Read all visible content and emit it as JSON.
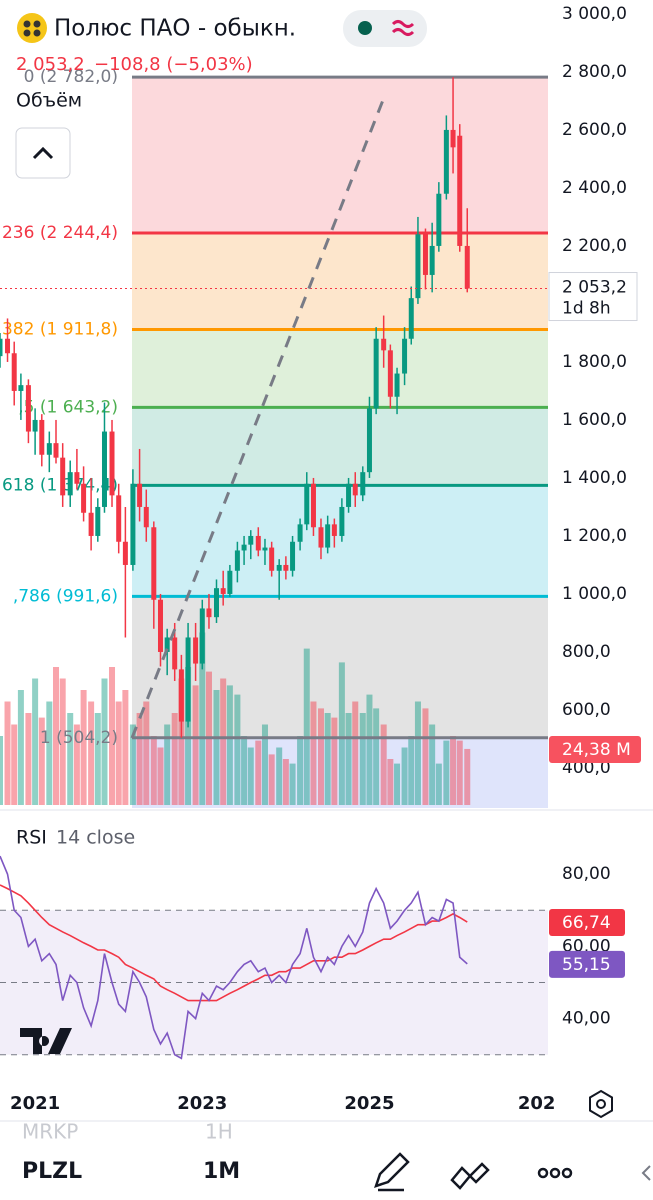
{
  "header": {
    "title": "Полюс ПАО - обыкн.",
    "quote": "2 053,2",
    "change": "−108,8 (−5,03%)",
    "volume_label": "Объём"
  },
  "chart_data": [
    {
      "type": "candlestick",
      "xlim": [
        2020.58,
        2027.1
      ],
      "ylim": [
        262,
        3048
      ],
      "grid": false,
      "xticks": [
        2021,
        2023,
        2025,
        {
          "value": 2027,
          "label": "202"
        }
      ],
      "yticks": [
        {
          "value": 3000,
          "label": "3 000,0"
        },
        {
          "value": 2800,
          "label": "2 800,0"
        },
        {
          "value": 2600,
          "label": "2 600,0"
        },
        {
          "value": 2400,
          "label": "2 400,0"
        },
        {
          "value": 2200,
          "label": "2 200,0"
        },
        {
          "value": 2000,
          "label": "2 000,0"
        },
        {
          "value": 1800,
          "label": "1 800,0"
        },
        {
          "value": 1600,
          "label": "1 600,0"
        },
        {
          "value": 1400,
          "label": "1 400,0"
        },
        {
          "value": 1200,
          "label": "1 200,0"
        },
        {
          "value": 1000,
          "label": "1 000,0"
        },
        {
          "value": 800,
          "label": "800,0"
        },
        {
          "value": 600,
          "label": "600,0"
        },
        {
          "value": 400,
          "label": "400,0"
        }
      ],
      "up_color": "#089981",
      "down_color": "#f23645",
      "x": [
        2020.58,
        2020.67,
        2020.75,
        2020.83,
        2020.92,
        2021.0,
        2021.08,
        2021.17,
        2021.25,
        2021.33,
        2021.42,
        2021.5,
        2021.58,
        2021.67,
        2021.75,
        2021.83,
        2021.92,
        2022.0,
        2022.08,
        2022.17,
        2022.25,
        2022.33,
        2022.42,
        2022.5,
        2022.58,
        2022.67,
        2022.75,
        2022.83,
        2022.92,
        2023.0,
        2023.08,
        2023.17,
        2023.25,
        2023.33,
        2023.42,
        2023.5,
        2023.58,
        2023.67,
        2023.75,
        2023.83,
        2023.92,
        2024.0,
        2024.08,
        2024.17,
        2024.25,
        2024.33,
        2024.42,
        2024.5,
        2024.58,
        2024.67,
        2024.75,
        2024.83,
        2024.92,
        2025.0,
        2025.08,
        2025.17,
        2025.25,
        2025.33,
        2025.42,
        2025.5,
        2025.58,
        2025.67,
        2025.75,
        2025.83,
        2025.92,
        2026.0,
        2026.08,
        2026.17
      ],
      "open": [
        1820,
        1880,
        1830,
        1700,
        1720,
        1560,
        1600,
        1480,
        1520,
        1470,
        1340,
        1420,
        1380,
        1280,
        1200,
        1300,
        1560,
        1340,
        1180,
        1100,
        1380,
        1300,
        1230,
        980,
        800,
        850,
        740,
        560,
        850,
        760,
        950,
        920,
        1020,
        1000,
        1080,
        1150,
        1170,
        1200,
        1150,
        1160,
        1080,
        1100,
        1080,
        1180,
        1240,
        1380,
        1230,
        1160,
        1240,
        1200,
        1300,
        1380,
        1340,
        1420,
        1640,
        1880,
        1840,
        1680,
        1760,
        1880,
        2020,
        2240,
        2100,
        2200,
        2380,
        2600,
        2580,
        2200
      ],
      "high": [
        1900,
        1950,
        1870,
        1760,
        1740,
        1640,
        1620,
        1560,
        1600,
        1520,
        1460,
        1500,
        1440,
        1400,
        1330,
        1660,
        1600,
        1380,
        1300,
        1430,
        1500,
        1360,
        1250,
        1000,
        880,
        900,
        790,
        900,
        900,
        980,
        1000,
        1050,
        1080,
        1100,
        1180,
        1200,
        1220,
        1230,
        1190,
        1180,
        1120,
        1130,
        1200,
        1260,
        1420,
        1400,
        1260,
        1270,
        1260,
        1330,
        1400,
        1420,
        1440,
        1680,
        1920,
        1960,
        1860,
        1780,
        1920,
        2060,
        2300,
        2260,
        2280,
        2420,
        2650,
        2782,
        2620,
        2330
      ],
      "low": [
        1780,
        1800,
        1650,
        1600,
        1520,
        1480,
        1440,
        1420,
        1450,
        1300,
        1300,
        1360,
        1250,
        1150,
        1180,
        1280,
        1300,
        1140,
        850,
        1080,
        1250,
        1180,
        880,
        750,
        720,
        700,
        504.2,
        540,
        700,
        740,
        880,
        900,
        960,
        990,
        1040,
        1100,
        1120,
        1130,
        1100,
        1060,
        980,
        1050,
        1060,
        1150,
        1220,
        1200,
        1120,
        1140,
        1160,
        1180,
        1280,
        1300,
        1320,
        1400,
        1620,
        1780,
        1640,
        1620,
        1720,
        1860,
        2000,
        2050,
        2040,
        2180,
        2360,
        2450,
        2180,
        2040
      ],
      "close": [
        1880,
        1830,
        1700,
        1720,
        1560,
        1600,
        1480,
        1520,
        1470,
        1340,
        1420,
        1380,
        1280,
        1200,
        1300,
        1560,
        1340,
        1180,
        1100,
        1380,
        1300,
        1230,
        980,
        800,
        850,
        740,
        560,
        850,
        760,
        950,
        920,
        1020,
        1000,
        1080,
        1150,
        1170,
        1200,
        1150,
        1160,
        1080,
        1100,
        1080,
        1180,
        1240,
        1380,
        1230,
        1160,
        1240,
        1200,
        1300,
        1380,
        1340,
        1420,
        1640,
        1880,
        1840,
        1680,
        1760,
        1880,
        2020,
        2240,
        2100,
        2200,
        2380,
        2600,
        2540,
        2200,
        2053.2
      ],
      "last_price": {
        "value": 2053.2,
        "label": "2 053,2",
        "countdown": "1d 8h"
      },
      "fib_levels": [
        {
          "value": 2782,
          "label": "0 (2 782,0)",
          "color": "#787b86",
          "fill": "#fcd9dc"
        },
        {
          "value": 2244.4,
          "label": "236 (2 244,4)",
          "color": "#f23645",
          "fill": "#fde6cc"
        },
        {
          "value": 1911.8,
          "label": "382 (1 911,8)",
          "color": "#ff9800",
          "fill": "#dff0da"
        },
        {
          "value": 1643.2,
          "label": ",5 (1 643,2)",
          "color": "#4caf50",
          "fill": "#d0ebe4"
        },
        {
          "value": 1374.4,
          "label": "618 (1 374,4)",
          "color": "#089981",
          "fill": "#cdeff5"
        },
        {
          "value": 991.6,
          "label": ",786 (991,6)",
          "color": "#00bcd4",
          "fill": "#e3e3e3"
        },
        {
          "value": 504.2,
          "label": "1 (504,2)",
          "color": "#787b86",
          "fill": "#dfe4fb"
        }
      ]
    },
    {
      "type": "volume",
      "ylim": [
        0,
        100
      ],
      "values": [
        30,
        45,
        35,
        50,
        40,
        55,
        38,
        45,
        60,
        55,
        40,
        35,
        50,
        45,
        40,
        55,
        60,
        45,
        50,
        35,
        40,
        45,
        30,
        25,
        35,
        40,
        55,
        60,
        52,
        75,
        58,
        50,
        55,
        52,
        48,
        30,
        25,
        28,
        35,
        22,
        25,
        20,
        18,
        30,
        68,
        45,
        42,
        40,
        38,
        62,
        40,
        45,
        40,
        48,
        42,
        35,
        20,
        18,
        25,
        30,
        45,
        42,
        35,
        18,
        28,
        30,
        28,
        24.38
      ],
      "value_labels": [
        null,
        null,
        null,
        null,
        null,
        null,
        null,
        null,
        null,
        null,
        null,
        null,
        null,
        null,
        null,
        null,
        null,
        null,
        null,
        null,
        null,
        null,
        null,
        null,
        null,
        null,
        null,
        null,
        null,
        null,
        null,
        null,
        null,
        null,
        null,
        null,
        null,
        null,
        null,
        null,
        null,
        null,
        null,
        null,
        null,
        null,
        null,
        null,
        null,
        null,
        null,
        null,
        null,
        null,
        null,
        null,
        null,
        null,
        null,
        null,
        null,
        null,
        null,
        null,
        null,
        null,
        null,
        "24,38 M"
      ]
    },
    {
      "type": "line",
      "title": "RSI",
      "subtitle": "14 close",
      "ylim": [
        23,
        95
      ],
      "yticks": [
        {
          "value": 80,
          "label": "80,00"
        },
        {
          "value": 60,
          "label": "60,00"
        },
        {
          "value": 40,
          "label": "40,00"
        }
      ],
      "bands": [
        70,
        50,
        30
      ],
      "series": [
        {
          "color": "#7e57c2",
          "values": [
            85,
            80,
            70,
            68,
            60,
            62,
            56,
            58,
            55,
            45,
            52,
            50,
            43,
            38,
            45,
            58,
            50,
            44,
            42,
            53,
            50,
            46,
            37,
            33,
            36,
            30,
            29,
            42,
            40,
            47,
            45,
            49,
            48,
            50,
            53,
            55,
            56,
            53,
            54,
            50,
            52,
            50,
            55,
            58,
            65,
            57,
            53,
            57,
            55,
            60,
            63,
            60,
            64,
            72,
            76,
            72,
            65,
            67,
            70,
            72,
            75,
            66,
            68,
            67,
            73,
            72,
            57,
            55.15
          ],
          "value_labels": [
            null,
            null,
            null,
            null,
            null,
            null,
            null,
            null,
            null,
            null,
            null,
            null,
            null,
            null,
            null,
            null,
            null,
            null,
            null,
            null,
            null,
            null,
            null,
            null,
            null,
            null,
            null,
            null,
            null,
            null,
            null,
            null,
            null,
            null,
            null,
            null,
            null,
            null,
            null,
            null,
            null,
            null,
            null,
            null,
            null,
            null,
            null,
            null,
            null,
            null,
            null,
            null,
            null,
            null,
            null,
            null,
            null,
            null,
            null,
            null,
            null,
            null,
            null,
            null,
            null,
            null,
            null,
            "55,15"
          ]
        },
        {
          "color": "#f23645",
          "values": [
            77,
            76,
            75,
            74,
            72,
            70,
            68,
            66,
            65,
            64,
            63,
            62,
            61,
            60,
            59,
            59,
            58,
            57,
            55,
            54,
            53,
            52,
            51,
            49,
            48,
            47,
            46,
            45,
            45,
            45,
            45,
            45,
            46,
            47,
            48,
            49,
            50,
            51,
            52,
            52,
            53,
            53,
            54,
            54,
            55,
            56,
            56,
            56,
            57,
            57,
            58,
            58,
            59,
            60,
            61,
            62,
            62,
            63,
            64,
            65,
            66,
            66,
            67,
            67,
            68,
            69,
            68,
            66.74
          ],
          "value_labels": [
            null,
            null,
            null,
            null,
            null,
            null,
            null,
            null,
            null,
            null,
            null,
            null,
            null,
            null,
            null,
            null,
            null,
            null,
            null,
            null,
            null,
            null,
            null,
            null,
            null,
            null,
            null,
            null,
            null,
            null,
            null,
            null,
            null,
            null,
            null,
            null,
            null,
            null,
            null,
            null,
            null,
            null,
            null,
            null,
            null,
            null,
            null,
            null,
            null,
            null,
            null,
            null,
            null,
            null,
            null,
            null,
            null,
            null,
            null,
            null,
            null,
            null,
            null,
            null,
            null,
            null,
            null,
            "66,74"
          ]
        }
      ]
    }
  ],
  "footer": {
    "prev_symbol": "MRKP",
    "prev_interval": "1H",
    "symbol": "PLZL",
    "interval": "1M"
  }
}
